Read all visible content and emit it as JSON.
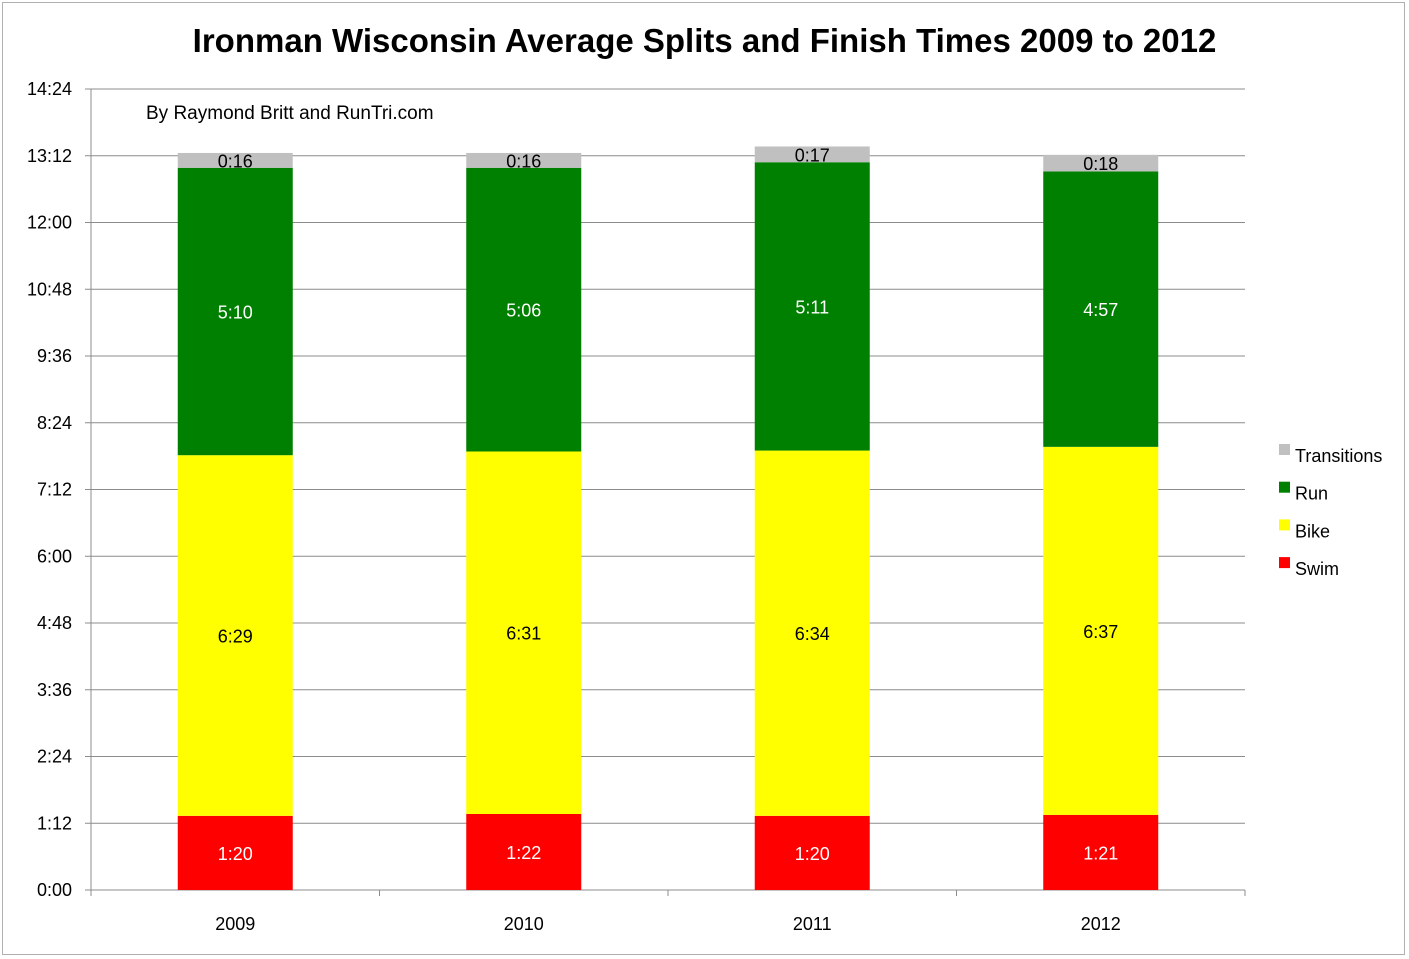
{
  "chart_data": {
    "type": "bar",
    "stacked": true,
    "title": "Ironman Wisconsin Average Splits and Finish Times 2009 to 2012",
    "annotation": "By Raymond Britt and RunTri.com",
    "categories": [
      "2009",
      "2010",
      "2011",
      "2012"
    ],
    "y_ticks": [
      "0:00",
      "1:12",
      "2:24",
      "3:36",
      "4:48",
      "6:00",
      "7:12",
      "8:24",
      "9:36",
      "10:48",
      "12:00",
      "13:12",
      "14:24"
    ],
    "ylim_minutes": [
      0,
      864
    ],
    "series": [
      {
        "name": "Swim",
        "color": "#ff0000",
        "label_color": "#ffffff",
        "minutes": [
          80,
          82,
          80,
          81
        ],
        "labels": [
          "1:20",
          "1:22",
          "1:20",
          "1:21"
        ]
      },
      {
        "name": "Bike",
        "color": "#ffff00",
        "label_color": "#000000",
        "minutes": [
          389,
          391,
          394,
          397
        ],
        "labels": [
          "6:29",
          "6:31",
          "6:34",
          "6:37"
        ]
      },
      {
        "name": "Run",
        "color": "#008000",
        "label_color": "#ffffff",
        "minutes": [
          310,
          306,
          311,
          297
        ],
        "labels": [
          "5:10",
          "5:06",
          "5:11",
          "4:57"
        ]
      },
      {
        "name": "Transitions",
        "color": "#c0c0c0",
        "label_color": "#000000",
        "minutes": [
          16,
          16,
          17,
          18
        ],
        "labels": [
          "0:16",
          "0:16",
          "0:17",
          "0:18"
        ]
      }
    ],
    "legend": {
      "placement": "right",
      "order": [
        "Transitions",
        "Run",
        "Bike",
        "Swim"
      ]
    },
    "grid": true
  }
}
